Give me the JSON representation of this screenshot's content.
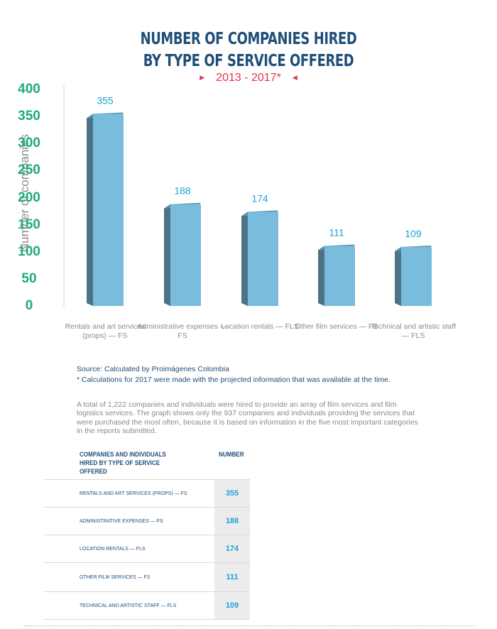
{
  "title_line1": "NUMBER OF COMPANIES HIRED",
  "title_line2": "BY TYPE OF SERVICE OFFERED",
  "subtitle": "2013 - 2017*",
  "colors": {
    "bar_front": "#7abcdc",
    "bar_side": "#4c7386",
    "bar_top": "#5f8ea4",
    "value_label": "#1aa3d9",
    "tick_label": "#1faa7f",
    "title": "#1f4e79",
    "subtitle": "#e6334f"
  },
  "chart_data": {
    "type": "bar",
    "title": "NUMBER OF COMPANIES HIRED BY TYPE OF SERVICE OFFERED",
    "subtitle": "2013 - 2017*",
    "ylabel": "Number of companies",
    "xlabel": "",
    "ylim": [
      0,
      400
    ],
    "yticks": [
      "0",
      "50",
      "100",
      "150",
      "200",
      "250",
      "300",
      "350",
      "400"
    ],
    "categories": [
      "Rentals and art services (props) — FS",
      "Administrative expenses — FS",
      "Location rentals — FLS",
      "Other film services — FS",
      "Technical and artistic staff — FLS"
    ],
    "values": [
      355,
      188,
      174,
      111,
      109
    ],
    "value_labels": [
      "355",
      "188",
      "174",
      "111",
      "109"
    ],
    "grid": false,
    "legend": "none"
  },
  "source": "Source:  Calculated by Proimágenes Colombia",
  "note": "* Calculations for 2017 were made with the projected information that was available at the time.",
  "paragraph": "A total of 1,222 companies and individuals were hired to provide an array of film services and film logistics services. The graph shows only the 937 companies and individuals providing the services that were purchased the most often, because it is based on information in the five most important categories in the reports submitted.",
  "table": {
    "header_label": "COMPANIES AND INDIVIDUALS HIRED BY TYPE OF SERVICE OFFERED",
    "header_number": "NUMBER",
    "rows": [
      {
        "label": "RENTALS AND ART SERVICES (PROPS) — FS",
        "number": "355"
      },
      {
        "label": "ADMINISTRATIVE EXPENSES — FS",
        "number": "188"
      },
      {
        "label": "LOCATION RENTALS — FLS",
        "number": "174"
      },
      {
        "label": "OTHER FILM SERVICES — FS",
        "number": "111"
      },
      {
        "label": "TECHNICAL AND ARTISTIC STAFF — FLS",
        "number": "109"
      }
    ]
  }
}
